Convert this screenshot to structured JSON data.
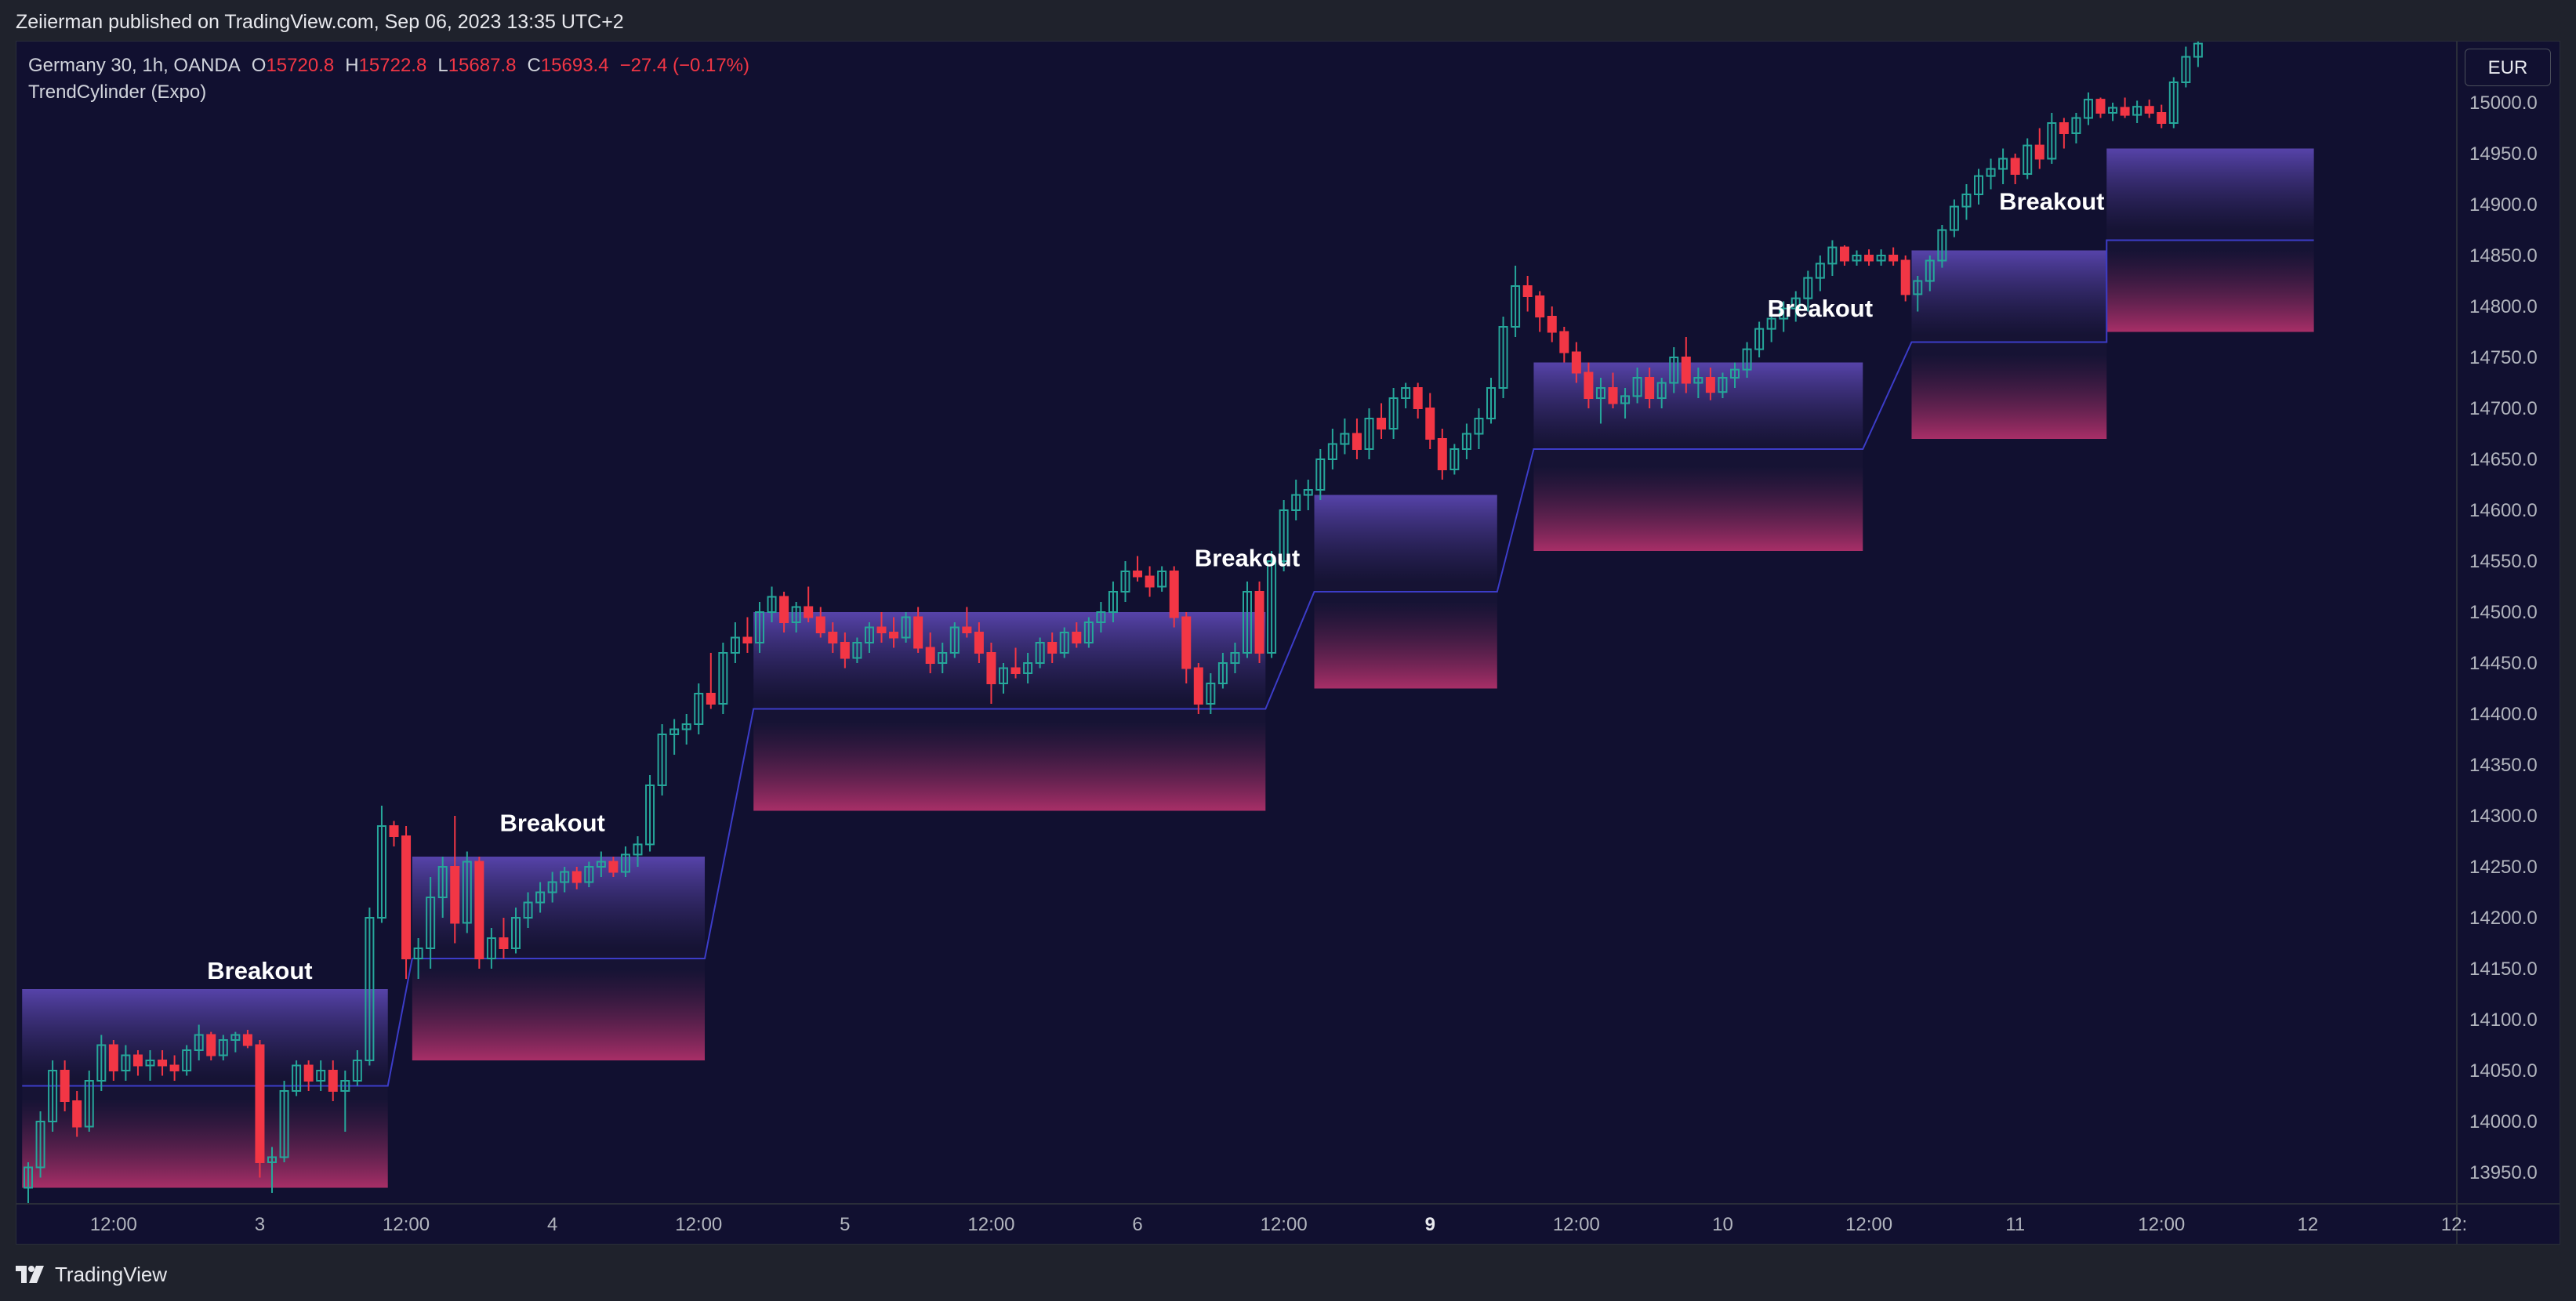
{
  "header": {
    "published_text": "Zeiierman published on TradingView.com, Sep 06, 2023 13:35 UTC+2"
  },
  "legend": {
    "symbol": "Germany 30, 1h, OANDA",
    "o_label": "O",
    "o_value": "15720.8",
    "h_label": "H",
    "h_value": "15722.8",
    "l_label": "L",
    "l_value": "15687.8",
    "c_label": "C",
    "c_value": "15693.4",
    "change": "−27.4 (−0.17%)",
    "indicator": "TrendCylinder (Expo)"
  },
  "currency_button": "EUR",
  "footer": {
    "brand": "TradingView",
    "logo_icon": "tradingview-logo-icon"
  },
  "colors": {
    "background": "#111030",
    "up": "#26a69a",
    "down": "#f23645",
    "band_top": "#5a46b0",
    "band_bottom": "#b0306a",
    "trend_line": "#3c3cc8",
    "label": "#ffffff"
  },
  "chart_data": {
    "type": "candlestick",
    "ylim": [
      13920,
      15060
    ],
    "y_ticks": [
      "13950.0",
      "14000.0",
      "14050.0",
      "14100.0",
      "14150.0",
      "14200.0",
      "14250.0",
      "14300.0",
      "14350.0",
      "14400.0",
      "14450.0",
      "14500.0",
      "14550.0",
      "14600.0",
      "14650.0",
      "14700.0",
      "14750.0",
      "14800.0",
      "14850.0",
      "14900.0",
      "14950.0",
      "15000.0"
    ],
    "x_ticks": [
      {
        "label": "12:00",
        "bar": 7,
        "bold": false
      },
      {
        "label": "3",
        "bar": 19,
        "bold": false
      },
      {
        "label": "12:00",
        "bar": 31,
        "bold": false
      },
      {
        "label": "4",
        "bar": 43,
        "bold": false
      },
      {
        "label": "12:00",
        "bar": 55,
        "bold": false
      },
      {
        "label": "5",
        "bar": 67,
        "bold": false
      },
      {
        "label": "12:00",
        "bar": 79,
        "bold": false
      },
      {
        "label": "6",
        "bar": 91,
        "bold": false
      },
      {
        "label": "12:00",
        "bar": 103,
        "bold": false
      },
      {
        "label": "9",
        "bar": 115,
        "bold": true
      },
      {
        "label": "12:00",
        "bar": 127,
        "bold": false
      },
      {
        "label": "10",
        "bar": 139,
        "bold": false
      },
      {
        "label": "12:00",
        "bar": 151,
        "bold": false
      },
      {
        "label": "11",
        "bar": 163,
        "bold": false
      },
      {
        "label": "12:00",
        "bar": 175,
        "bold": false
      },
      {
        "label": "12",
        "bar": 187,
        "bold": false
      },
      {
        "label": "12:",
        "bar": 199,
        "bold": false
      }
    ],
    "ohlc": [
      [
        13935,
        13960,
        13920,
        13955
      ],
      [
        13955,
        14010,
        13945,
        14000
      ],
      [
        14000,
        14060,
        13990,
        14050
      ],
      [
        14050,
        14060,
        14010,
        14020
      ],
      [
        14020,
        14030,
        13985,
        13995
      ],
      [
        13995,
        14050,
        13990,
        14040
      ],
      [
        14040,
        14085,
        14030,
        14075
      ],
      [
        14075,
        14080,
        14040,
        14050
      ],
      [
        14050,
        14075,
        14040,
        14065
      ],
      [
        14065,
        14070,
        14045,
        14055
      ],
      [
        14055,
        14070,
        14040,
        14060
      ],
      [
        14060,
        14070,
        14045,
        14055
      ],
      [
        14055,
        14065,
        14040,
        14050
      ],
      [
        14050,
        14075,
        14045,
        14070
      ],
      [
        14070,
        14095,
        14060,
        14085
      ],
      [
        14085,
        14088,
        14060,
        14065
      ],
      [
        14065,
        14085,
        14060,
        14080
      ],
      [
        14080,
        14088,
        14068,
        14085
      ],
      [
        14085,
        14090,
        14072,
        14075
      ],
      [
        14075,
        14080,
        13945,
        13960
      ],
      [
        13960,
        13975,
        13930,
        13965
      ],
      [
        13965,
        14040,
        13960,
        14030
      ],
      [
        14030,
        14060,
        14025,
        14055
      ],
      [
        14055,
        14060,
        14030,
        14040
      ],
      [
        14040,
        14060,
        14030,
        14050
      ],
      [
        14050,
        14060,
        14020,
        14030
      ],
      [
        14030,
        14050,
        13990,
        14040
      ],
      [
        14040,
        14070,
        14035,
        14060
      ],
      [
        14060,
        14210,
        14055,
        14200
      ],
      [
        14200,
        14310,
        14195,
        14290
      ],
      [
        14290,
        14295,
        14270,
        14280
      ],
      [
        14280,
        14290,
        14140,
        14160
      ],
      [
        14160,
        14180,
        14140,
        14170
      ],
      [
        14170,
        14240,
        14150,
        14220
      ],
      [
        14220,
        14260,
        14200,
        14250
      ],
      [
        14250,
        14300,
        14175,
        14195
      ],
      [
        14195,
        14265,
        14185,
        14255
      ],
      [
        14255,
        14260,
        14150,
        14160
      ],
      [
        14160,
        14190,
        14150,
        14180
      ],
      [
        14180,
        14200,
        14160,
        14170
      ],
      [
        14170,
        14210,
        14165,
        14200
      ],
      [
        14200,
        14225,
        14190,
        14215
      ],
      [
        14215,
        14235,
        14205,
        14225
      ],
      [
        14225,
        14245,
        14215,
        14235
      ],
      [
        14235,
        14250,
        14225,
        14245
      ],
      [
        14245,
        14250,
        14228,
        14235
      ],
      [
        14235,
        14255,
        14230,
        14250
      ],
      [
        14250,
        14265,
        14240,
        14255
      ],
      [
        14255,
        14260,
        14240,
        14245
      ],
      [
        14245,
        14270,
        14240,
        14262
      ],
      [
        14262,
        14280,
        14250,
        14272
      ],
      [
        14272,
        14340,
        14265,
        14330
      ],
      [
        14330,
        14390,
        14320,
        14380
      ],
      [
        14380,
        14395,
        14360,
        14385
      ],
      [
        14385,
        14400,
        14370,
        14390
      ],
      [
        14390,
        14430,
        14380,
        14420
      ],
      [
        14420,
        14460,
        14405,
        14410
      ],
      [
        14410,
        14470,
        14400,
        14460
      ],
      [
        14460,
        14490,
        14450,
        14475
      ],
      [
        14475,
        14495,
        14460,
        14470
      ],
      [
        14470,
        14510,
        14460,
        14500
      ],
      [
        14500,
        14525,
        14490,
        14515
      ],
      [
        14515,
        14520,
        14480,
        14490
      ],
      [
        14490,
        14510,
        14480,
        14505
      ],
      [
        14505,
        14525,
        14490,
        14495
      ],
      [
        14495,
        14505,
        14475,
        14480
      ],
      [
        14480,
        14490,
        14460,
        14470
      ],
      [
        14470,
        14480,
        14445,
        14455
      ],
      [
        14455,
        14475,
        14450,
        14470
      ],
      [
        14470,
        14490,
        14460,
        14485
      ],
      [
        14485,
        14500,
        14470,
        14480
      ],
      [
        14480,
        14495,
        14465,
        14475
      ],
      [
        14475,
        14500,
        14470,
        14495
      ],
      [
        14495,
        14505,
        14460,
        14465
      ],
      [
        14465,
        14480,
        14440,
        14450
      ],
      [
        14450,
        14470,
        14440,
        14460
      ],
      [
        14460,
        14490,
        14455,
        14485
      ],
      [
        14485,
        14505,
        14475,
        14480
      ],
      [
        14480,
        14490,
        14450,
        14460
      ],
      [
        14460,
        14470,
        14410,
        14430
      ],
      [
        14430,
        14450,
        14420,
        14445
      ],
      [
        14445,
        14465,
        14435,
        14440
      ],
      [
        14440,
        14460,
        14430,
        14450
      ],
      [
        14450,
        14475,
        14445,
        14470
      ],
      [
        14470,
        14480,
        14450,
        14460
      ],
      [
        14460,
        14485,
        14455,
        14480
      ],
      [
        14480,
        14490,
        14465,
        14470
      ],
      [
        14470,
        14495,
        14465,
        14490
      ],
      [
        14490,
        14510,
        14480,
        14500
      ],
      [
        14500,
        14530,
        14490,
        14520
      ],
      [
        14520,
        14550,
        14510,
        14540
      ],
      [
        14540,
        14555,
        14530,
        14535
      ],
      [
        14535,
        14545,
        14515,
        14525
      ],
      [
        14525,
        14545,
        14520,
        14540
      ],
      [
        14540,
        14545,
        14485,
        14495
      ],
      [
        14495,
        14500,
        14430,
        14445
      ],
      [
        14445,
        14450,
        14400,
        14410
      ],
      [
        14410,
        14440,
        14400,
        14430
      ],
      [
        14430,
        14460,
        14425,
        14450
      ],
      [
        14450,
        14470,
        14440,
        14460
      ],
      [
        14460,
        14530,
        14455,
        14520
      ],
      [
        14520,
        14530,
        14450,
        14460
      ],
      [
        14460,
        14560,
        14455,
        14550
      ],
      [
        14550,
        14610,
        14540,
        14600
      ],
      [
        14600,
        14630,
        14590,
        14615
      ],
      [
        14615,
        14630,
        14600,
        14620
      ],
      [
        14620,
        14660,
        14610,
        14650
      ],
      [
        14650,
        14680,
        14640,
        14665
      ],
      [
        14665,
        14690,
        14655,
        14675
      ],
      [
        14675,
        14690,
        14650,
        14660
      ],
      [
        14660,
        14700,
        14650,
        14690
      ],
      [
        14690,
        14705,
        14670,
        14680
      ],
      [
        14680,
        14720,
        14670,
        14710
      ],
      [
        14710,
        14725,
        14700,
        14720
      ],
      [
        14720,
        14725,
        14690,
        14700
      ],
      [
        14700,
        14715,
        14660,
        14670
      ],
      [
        14670,
        14680,
        14630,
        14640
      ],
      [
        14640,
        14665,
        14635,
        14660
      ],
      [
        14660,
        14685,
        14650,
        14675
      ],
      [
        14675,
        14700,
        14660,
        14690
      ],
      [
        14690,
        14730,
        14685,
        14720
      ],
      [
        14720,
        14790,
        14710,
        14780
      ],
      [
        14780,
        14840,
        14770,
        14820
      ],
      [
        14820,
        14830,
        14795,
        14810
      ],
      [
        14810,
        14815,
        14775,
        14790
      ],
      [
        14790,
        14800,
        14765,
        14775
      ],
      [
        14775,
        14780,
        14745,
        14755
      ],
      [
        14755,
        14765,
        14725,
        14735
      ],
      [
        14735,
        14745,
        14700,
        14710
      ],
      [
        14710,
        14730,
        14685,
        14720
      ],
      [
        14720,
        14735,
        14700,
        14705
      ],
      [
        14705,
        14720,
        14690,
        14712
      ],
      [
        14712,
        14740,
        14705,
        14730
      ],
      [
        14730,
        14740,
        14700,
        14710
      ],
      [
        14710,
        14730,
        14700,
        14725
      ],
      [
        14725,
        14760,
        14715,
        14750
      ],
      [
        14750,
        14770,
        14715,
        14725
      ],
      [
        14725,
        14740,
        14710,
        14730
      ],
      [
        14730,
        14740,
        14708,
        14716
      ],
      [
        14716,
        14735,
        14710,
        14730
      ],
      [
        14730,
        14745,
        14720,
        14738
      ],
      [
        14738,
        14765,
        14730,
        14758
      ],
      [
        14758,
        14785,
        14750,
        14778
      ],
      [
        14778,
        14795,
        14765,
        14788
      ],
      [
        14788,
        14805,
        14775,
        14798
      ],
      [
        14798,
        14815,
        14785,
        14808
      ],
      [
        14808,
        14835,
        14795,
        14828
      ],
      [
        14828,
        14850,
        14815,
        14842
      ],
      [
        14842,
        14865,
        14830,
        14858
      ],
      [
        14858,
        14860,
        14840,
        14845
      ],
      [
        14845,
        14855,
        14840,
        14850
      ],
      [
        14850,
        14856,
        14840,
        14845
      ],
      [
        14845,
        14856,
        14840,
        14850
      ],
      [
        14850,
        14858,
        14840,
        14845
      ],
      [
        14845,
        14850,
        14805,
        14812
      ],
      [
        14812,
        14830,
        14795,
        14825
      ],
      [
        14825,
        14850,
        14815,
        14845
      ],
      [
        14845,
        14880,
        14838,
        14875
      ],
      [
        14875,
        14905,
        14868,
        14898
      ],
      [
        14898,
        14920,
        14885,
        14910
      ],
      [
        14910,
        14935,
        14900,
        14928
      ],
      [
        14928,
        14945,
        14915,
        14935
      ],
      [
        14935,
        14955,
        14920,
        14945
      ],
      [
        14945,
        14950,
        14920,
        14930
      ],
      [
        14930,
        14965,
        14925,
        14958
      ],
      [
        14958,
        14975,
        14935,
        14945
      ],
      [
        14945,
        14990,
        14940,
        14980
      ],
      [
        14980,
        14985,
        14955,
        14970
      ],
      [
        14970,
        14990,
        14960,
        14985
      ],
      [
        14985,
        15010,
        14978,
        15003
      ],
      [
        15003,
        15005,
        14985,
        14990
      ],
      [
        14990,
        15000,
        14982,
        14995
      ],
      [
        14995,
        15005,
        14985,
        14988
      ],
      [
        14988,
        15002,
        14980,
        14996
      ],
      [
        14996,
        15003,
        14985,
        14990
      ],
      [
        14990,
        14998,
        14975,
        14980
      ],
      [
        14980,
        15025,
        14975,
        15020
      ],
      [
        15020,
        15055,
        15015,
        15045
      ],
      [
        15045,
        15065,
        15035,
        15058
      ]
    ],
    "cylinders": [
      {
        "start": 0,
        "end": 29,
        "upper": 14130,
        "mid": 14035,
        "lower": 13935
      },
      {
        "start": 32,
        "end": 55,
        "upper": 14260,
        "mid": 14160,
        "lower": 14060
      },
      {
        "start": 60,
        "end": 101,
        "upper": 14500,
        "mid": 14405,
        "lower": 14305
      },
      {
        "start": 106,
        "end": 120,
        "upper": 14615,
        "mid": 14520,
        "lower": 14425
      },
      {
        "start": 124,
        "end": 150,
        "upper": 14745,
        "mid": 14660,
        "lower": 14560
      },
      {
        "start": 155,
        "end": 170,
        "upper": 14855,
        "mid": 14765,
        "lower": 14670
      },
      {
        "start": 171,
        "end": 187,
        "upper": 14955,
        "mid": 14865,
        "lower": 14775
      }
    ],
    "annotations": [
      {
        "text": "Breakout",
        "bar": 19,
        "price": 14140
      },
      {
        "text": "Breakout",
        "bar": 43,
        "price": 14285
      },
      {
        "text": "Breakout",
        "bar": 100,
        "price": 14545
      },
      {
        "text": "Breakout",
        "bar": 147,
        "price": 14790
      },
      {
        "text": "Breakout",
        "bar": 166,
        "price": 14895
      }
    ]
  }
}
